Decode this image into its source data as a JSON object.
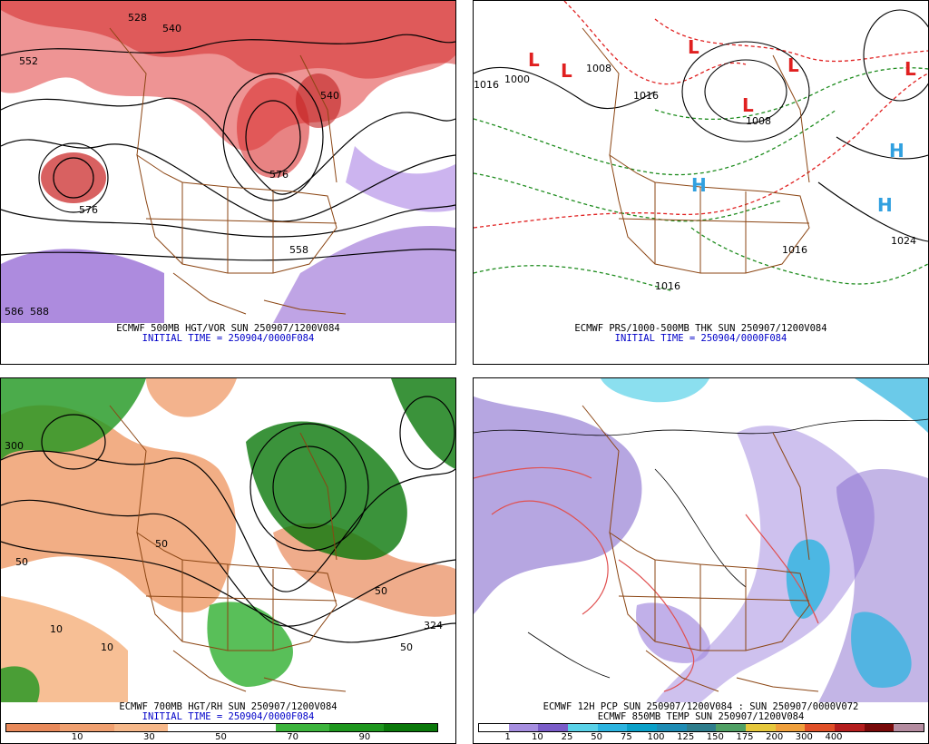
{
  "panels": [
    {
      "title": "ECMWF 500MB HGT/VOR SUN 250907/1200V084",
      "subtitle": "INITIAL TIME = 250904/0000F084",
      "labels": [
        "552",
        "528",
        "540",
        "576",
        "540",
        "576",
        "558",
        "586",
        "588"
      ]
    },
    {
      "title": "ECMWF PRS/1000-500MB THK SUN 250907/1200V084",
      "subtitle": "INITIAL TIME = 250904/0000F084",
      "labels": [
        "1000",
        "1008",
        "1016",
        "1016",
        "1024",
        "1016",
        "1016",
        "1008"
      ],
      "highs": [
        "H",
        "H",
        "H"
      ],
      "lows": [
        "L",
        "L",
        "L",
        "L",
        "L",
        "L"
      ]
    },
    {
      "title": "ECMWF 700MB HGT/RH SUN 250907/1200V084",
      "subtitle": "INITIAL TIME = 250904/0000F084",
      "labels": [
        "300",
        "50",
        "50",
        "10",
        "10",
        "50",
        "50",
        "324"
      ],
      "colorbar": {
        "colors": [
          "#e8895a",
          "#f0a070",
          "#f6b88a",
          "#ffffff",
          "#ffffff",
          "#3cb43c",
          "#1e961e",
          "#0a780a"
        ],
        "ticks": [
          "10",
          "30",
          "50",
          "70",
          "90"
        ]
      }
    },
    {
      "title": "ECMWF 12H PCP SUN 250907/1200V084 : SUN 250907/0000V072",
      "subtitle": "ECMWF 850MB TEMP SUN 250907/1200V084",
      "colorbar": {
        "colors": [
          "#ffffff",
          "#a68ee0",
          "#7a5cc8",
          "#5ad2e8",
          "#2cb4e0",
          "#0aa0c8",
          "#1e8cb4",
          "#2e7d8c",
          "#50a064",
          "#e6c83c",
          "#f0a03c",
          "#e05028",
          "#b41e1e",
          "#780a0a",
          "#b48ca0"
        ],
        "ticks": [
          "1",
          "10",
          "25",
          "50",
          "75",
          "100",
          "125",
          "150",
          "175",
          "200",
          "300",
          "400"
        ]
      }
    }
  ]
}
